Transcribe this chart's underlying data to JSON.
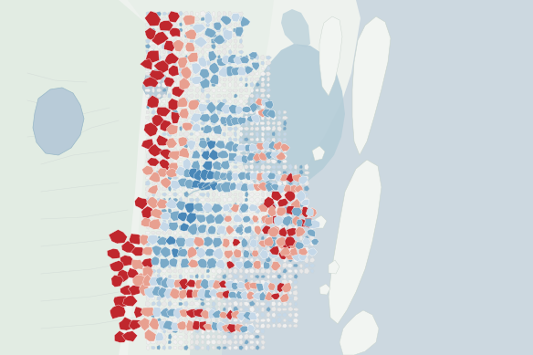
{
  "background_ocean": "#ccd8e0",
  "background_land_light": "#eef2ee",
  "background_land_green": "#e2ece3",
  "background_land_far": "#dce8dc",
  "coast_color": "#f2f5f2",
  "moreton_bay_color": "#b5cdd8",
  "water_inner_color": "#a0c0d0",
  "reservoir_color": "#b8cbd8",
  "colors": {
    "highly_vulnerable": "#c0272d",
    "vulnerable": "#d96060",
    "moderate": "#e8a090",
    "low_moderate": "#c5d8e8",
    "low": "#7aaac8",
    "very_low": "#4a88b8",
    "neutral": "#e8e8e8",
    "neutral2": "#f0f0f0"
  },
  "figsize": [
    5.84,
    3.89
  ],
  "dpi": 100
}
